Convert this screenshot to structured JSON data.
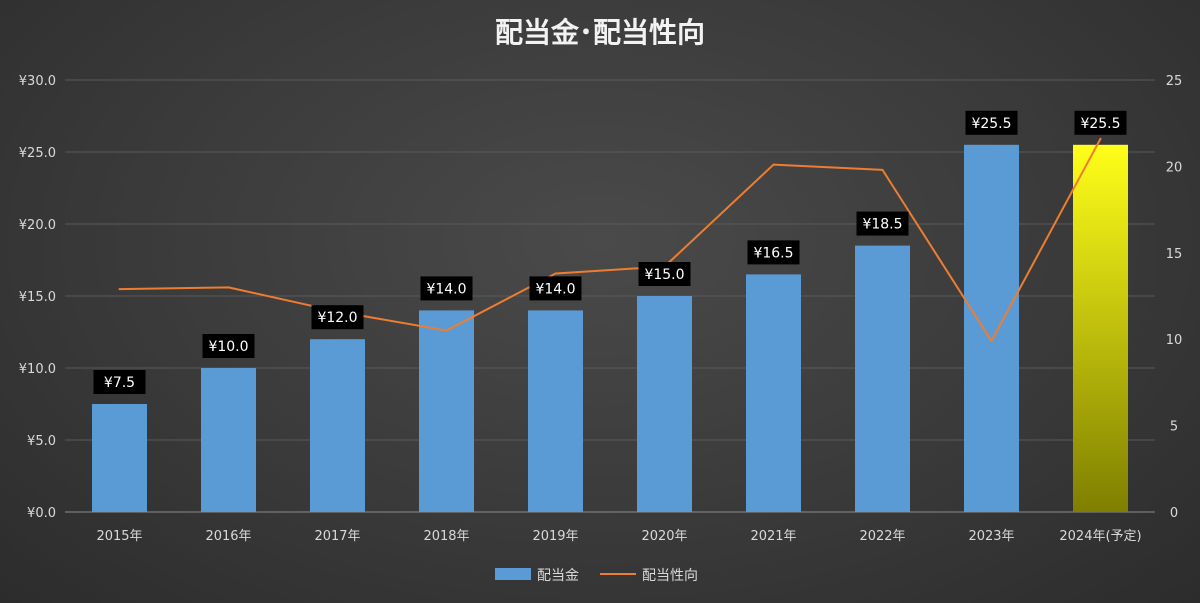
{
  "chart_data": {
    "type": "bar",
    "title": "配当金･配当性向",
    "categories": [
      "2015年",
      "2016年",
      "2017年",
      "2018年",
      "2019年",
      "2020年",
      "2021年",
      "2022年",
      "2023年",
      "2024年(予定)"
    ],
    "series": [
      {
        "name": "配当金",
        "type": "bar",
        "axis": "left",
        "values": [
          7.5,
          10.0,
          12.0,
          14.0,
          14.0,
          15.0,
          16.5,
          18.5,
          25.5,
          25.5
        ],
        "data_labels": [
          "¥7.5",
          "¥10.0",
          "¥12.0",
          "¥14.0",
          "¥14.0",
          "¥15.0",
          "¥16.5",
          "¥18.5",
          "¥25.5",
          "¥25.5"
        ],
        "color": "#5b9bd5",
        "highlight_color_top": "#ffff1a",
        "highlight_color_bottom": "#7f7f00",
        "highlight_index": 9
      },
      {
        "name": "配当性向",
        "type": "line",
        "axis": "right",
        "values": [
          12.9,
          13.0,
          11.6,
          10.5,
          13.8,
          14.2,
          20.1,
          19.8,
          9.9,
          21.6
        ],
        "color": "#ed7d31"
      }
    ],
    "ylim_left": [
      0,
      30
    ],
    "ylim_right": [
      0,
      25
    ],
    "yticks_left": [
      "¥0.0",
      "¥5.0",
      "¥10.0",
      "¥15.0",
      "¥20.0",
      "¥25.0",
      "¥30.0"
    ],
    "yticks_right": [
      "0",
      "5",
      "10",
      "15",
      "20",
      "25"
    ],
    "grid": true,
    "legend_position": "bottom",
    "legend": [
      "配当金",
      "配当性向"
    ]
  }
}
